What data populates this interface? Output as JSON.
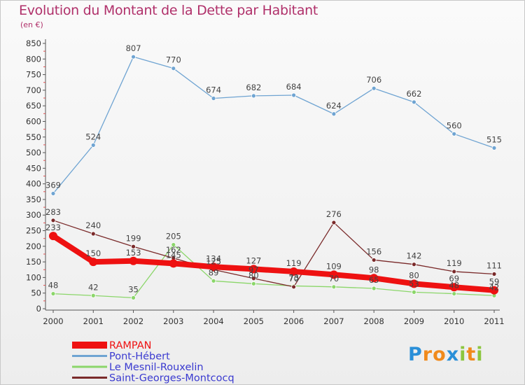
{
  "title": "Evolution du Montant de la Dette par Habitant",
  "unit": "(en €)",
  "brand": {
    "letters": [
      "P",
      "r",
      "o",
      "x",
      "i",
      "t",
      "i"
    ],
    "colors": [
      "#2a8fd8",
      "#f08a1c",
      "#f08a1c",
      "#2a8fd8",
      "#8cc63f",
      "#f08a1c",
      "#8cc63f"
    ]
  },
  "chart_data": {
    "type": "line",
    "title": "Evolution du Montant de la Dette par Habitant",
    "ylabel": "(en €)",
    "xlabel": "",
    "x": [
      "2000",
      "2001",
      "2002",
      "2003",
      "2004",
      "2005",
      "2006",
      "2007",
      "2008",
      "2009",
      "2010",
      "2011"
    ],
    "ylim": [
      0,
      850
    ],
    "yticks": [
      0,
      50,
      100,
      150,
      200,
      250,
      300,
      350,
      400,
      450,
      500,
      550,
      600,
      650,
      700,
      750,
      800,
      850
    ],
    "grid": false,
    "legend": "bottom-left",
    "series": [
      {
        "name": "RAMPAN",
        "color": "#ee1111",
        "values": [
          233,
          150,
          153,
          145,
          134,
          127,
          119,
          109,
          98,
          80,
          69,
          59
        ]
      },
      {
        "name": "Pont-Hébert",
        "color": "#6fa4d2",
        "values": [
          369,
          524,
          807,
          770,
          674,
          682,
          684,
          624,
          706,
          662,
          560,
          515
        ]
      },
      {
        "name": "Le Mesnil-Rouxelin",
        "color": "#8bd66a",
        "values": [
          48,
          42,
          35,
          205,
          89,
          80,
          73,
          70,
          65,
          53,
          48,
          42
        ]
      },
      {
        "name": "Saint-Georges-Montcocq",
        "color": "#7a2a2a",
        "values": [
          283,
          240,
          199,
          162,
          125,
          97,
          70,
          276,
          156,
          142,
          119,
          111
        ]
      }
    ]
  }
}
